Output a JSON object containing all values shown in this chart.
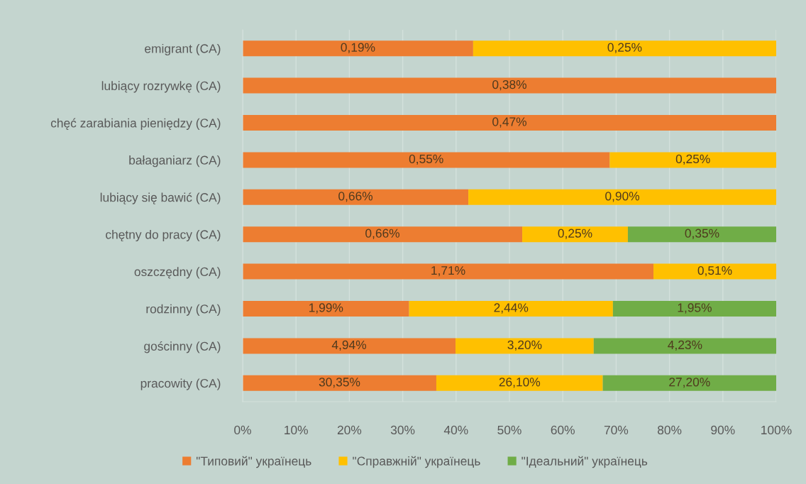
{
  "chart_data": {
    "type": "bar",
    "orientation": "horizontal",
    "stacked": true,
    "categories": [
      "emigrant (CA)",
      "lubiący rozrywkę (CA)",
      "chęć zarabiania pieniędzy (CA)",
      "bałaganiarz (CA)",
      "lubiący się bawić (CA)",
      "chętny do pracy (CA)",
      "oszczędny (CA)",
      "rodzinny (CA)",
      "gościnny (CA)",
      "pracowity (CA)"
    ],
    "series": [
      {
        "name": "\"Типовий\" українець",
        "color": "#ed7d31",
        "values": [
          43.2,
          100,
          100,
          68.8,
          42.3,
          52.4,
          77.0,
          31.2,
          39.9,
          36.3
        ]
      },
      {
        "name": "\"Справжній\" українець",
        "color": "#ffc000",
        "values": [
          56.8,
          null,
          null,
          31.2,
          57.7,
          19.8,
          23.0,
          38.2,
          25.9,
          31.2
        ]
      },
      {
        "name": "\"Ідеальний\" українець",
        "color": "#70ad47",
        "values": [
          null,
          null,
          null,
          null,
          null,
          27.8,
          null,
          30.6,
          34.2,
          32.5
        ]
      }
    ],
    "annotations": [
      "0,19%",
      "0,25%",
      "0,38%",
      "0,47%",
      "0,55%",
      "0,25%",
      "0,66%",
      "0,90%",
      "0,66%",
      "0,25%",
      "0,35%",
      "1,71%",
      "0,51%",
      "1,99%",
      "2,44%",
      "1,95%",
      "4,94%",
      "3,20%",
      "4,23%",
      "30,35%",
      "26,10%",
      "27,20%"
    ],
    "xlim": [
      0,
      100
    ],
    "xticks": [
      {
        "value": 0,
        "label": "0%"
      },
      {
        "value": 10,
        "label": "10%"
      },
      {
        "value": 20,
        "label": "20%"
      },
      {
        "value": 30,
        "label": "30%"
      },
      {
        "value": 40,
        "label": "40%"
      },
      {
        "value": 50,
        "label": "50%"
      },
      {
        "value": 60,
        "label": "60%"
      },
      {
        "value": 70,
        "label": "70%"
      },
      {
        "value": 80,
        "label": "80%"
      },
      {
        "value": 90,
        "label": "90%"
      },
      {
        "value": 100,
        "label": "100%"
      }
    ],
    "grid": "x",
    "legend": "bottom"
  }
}
